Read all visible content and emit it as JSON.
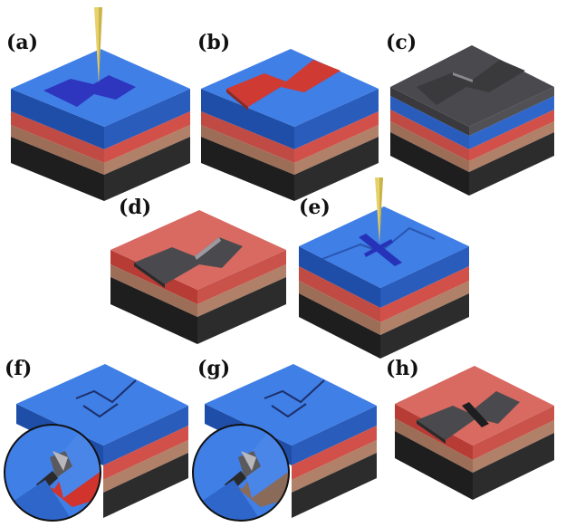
{
  "figure": {
    "panels": [
      {
        "label": "(a)",
        "state": "tip over blue resist with bow-tie exposure pattern"
      },
      {
        "label": "(b)",
        "state": "developed trench exposing red layer"
      },
      {
        "label": "(c)",
        "state": "gray metal deposition over structure"
      },
      {
        "label": "(d)",
        "state": "lift-off leaves gray bow-tie on red layer"
      },
      {
        "label": "(e)",
        "state": "second tip exposure of gap line"
      },
      {
        "label": "(f)",
        "state": "developed gap line with red inset"
      },
      {
        "label": "(g)",
        "state": "etched gap with brown inset"
      },
      {
        "label": "(h)",
        "state": "final bow-tie with nanogap"
      }
    ],
    "colors": {
      "resist_blue": "#2f66c9",
      "polymer_red": "#c83a32",
      "substrate_tan": "#b5876e",
      "base_black": "#2a2a2a",
      "metal_gray": "#4a4a4e",
      "tip_gold": "#e6d16a",
      "exposed_blue": "#2633b8"
    }
  }
}
